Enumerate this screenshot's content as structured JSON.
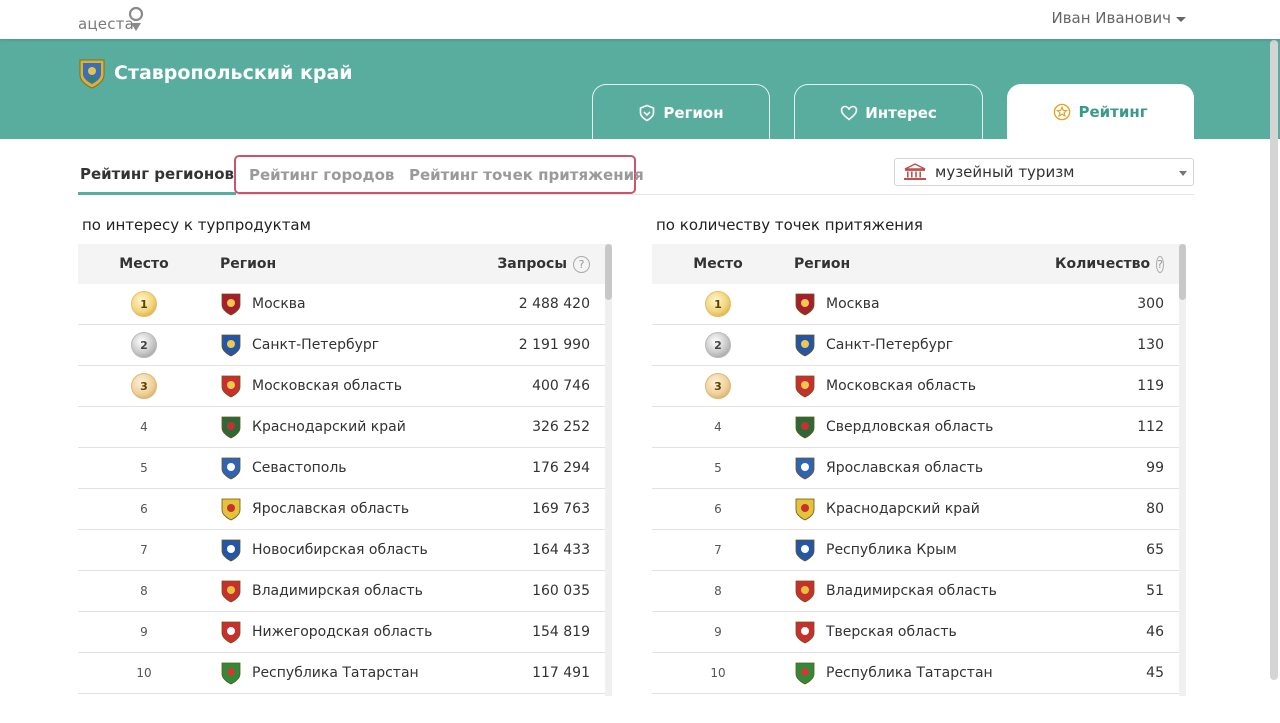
{
  "app": {
    "logo_text": "ацеста",
    "user_name": "Иван Иванович"
  },
  "region": {
    "name": "Ставропольский край"
  },
  "tabs": [
    {
      "label": "Регион",
      "icon": "shield-icon"
    },
    {
      "label": "Интерес",
      "icon": "heart-icon"
    },
    {
      "label": "Рейтинг",
      "icon": "star-icon",
      "active": true
    }
  ],
  "subtabs": [
    {
      "label": "Рейтинг регионов",
      "active": true
    },
    {
      "label": "Рейтинг городов"
    },
    {
      "label": "Рейтинг точек притяжения"
    }
  ],
  "filter": {
    "selected": "музейный туризм",
    "icon": "museum-icon"
  },
  "colors": {
    "accent": "#58ad9e",
    "highlight": "#c8556e"
  },
  "left_table": {
    "title": "по интересу к турпродуктам",
    "col_place": "Место",
    "col_region": "Регион",
    "col_value": "Запросы",
    "help_icon": "?",
    "rows": [
      {
        "place": "1",
        "region": "Москва",
        "value": "2 488 420"
      },
      {
        "place": "2",
        "region": "Санкт-Петербург",
        "value": "2 191 990"
      },
      {
        "place": "3",
        "region": "Московская область",
        "value": "400 746"
      },
      {
        "place": "4",
        "region": "Краснодарский край",
        "value": "326 252"
      },
      {
        "place": "5",
        "region": "Севастополь",
        "value": "176 294"
      },
      {
        "place": "6",
        "region": "Ярославская область",
        "value": "169 763"
      },
      {
        "place": "7",
        "region": "Новосибирская область",
        "value": "164 433"
      },
      {
        "place": "8",
        "region": "Владимирская область",
        "value": "160 035"
      },
      {
        "place": "9",
        "region": "Нижегородская область",
        "value": "154 819"
      },
      {
        "place": "10",
        "region": "Республика Татарстан",
        "value": "117 491"
      }
    ]
  },
  "right_table": {
    "title": "по количеству точек притяжения",
    "col_place": "Место",
    "col_region": "Регион",
    "col_value": "Количество",
    "help_icon": "?",
    "rows": [
      {
        "place": "1",
        "region": "Москва",
        "value": "300"
      },
      {
        "place": "2",
        "region": "Санкт-Петербург",
        "value": "130"
      },
      {
        "place": "3",
        "region": "Московская область",
        "value": "119"
      },
      {
        "place": "4",
        "region": "Свердловская область",
        "value": "112"
      },
      {
        "place": "5",
        "region": "Ярославская область",
        "value": "99"
      },
      {
        "place": "6",
        "region": "Краснодарский край",
        "value": "80"
      },
      {
        "place": "7",
        "region": "Республика Крым",
        "value": "65"
      },
      {
        "place": "8",
        "region": "Владимирская область",
        "value": "51"
      },
      {
        "place": "9",
        "region": "Тверская область",
        "value": "46"
      },
      {
        "place": "10",
        "region": "Республика Татарстан",
        "value": "45"
      }
    ]
  }
}
